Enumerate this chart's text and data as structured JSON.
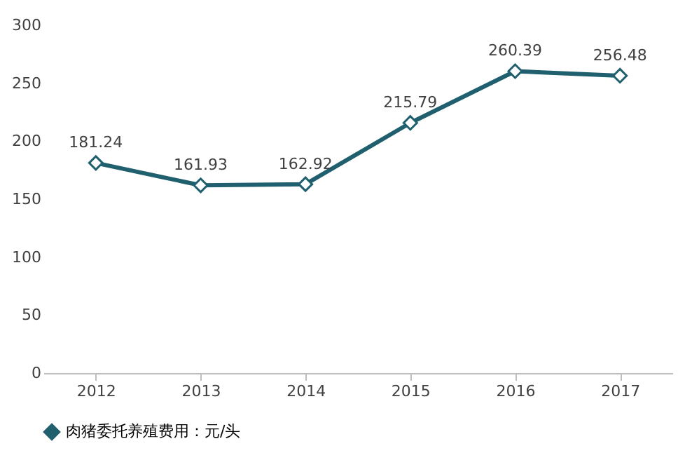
{
  "chart_data": {
    "type": "line",
    "categories": [
      "2012",
      "2013",
      "2014",
      "2015",
      "2016",
      "2017"
    ],
    "series": [
      {
        "name": "肉猪委托养殖费用：元/头",
        "color": "#1f5f6e",
        "values": [
          181.24,
          161.93,
          162.92,
          215.79,
          260.39,
          256.48
        ]
      }
    ],
    "ylim": [
      0,
      300
    ],
    "yticks": [
      0,
      50,
      100,
      150,
      200,
      250,
      300
    ],
    "grid": false,
    "legend": "bottom",
    "marker": "diamond",
    "line_style": "solid",
    "data_labels": true
  }
}
